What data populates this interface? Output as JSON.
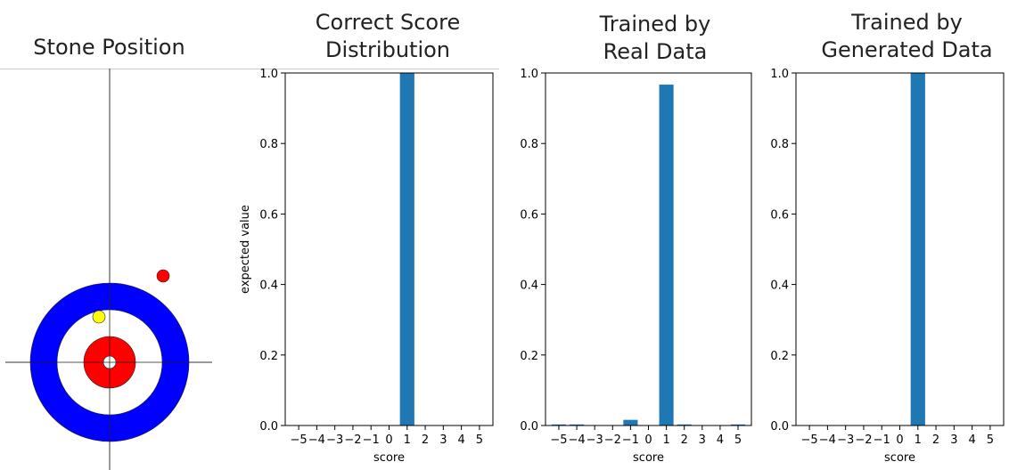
{
  "left_panel": {
    "title": "Stone Position",
    "colors": {
      "outer_ring": "#0000ff",
      "inner_ring": "#ff0000",
      "button": "#ffffff",
      "stone_red": "#ff0000",
      "stone_yellow": "#ffff00"
    }
  },
  "chart_data": [
    {
      "type": "bar",
      "title": "Correct Score\nDistribution",
      "xlabel": "score",
      "ylabel": "expected value",
      "categories": [
        "−5",
        "−4",
        "−3",
        "−2",
        "−1",
        "0",
        "1",
        "2",
        "3",
        "4",
        "5"
      ],
      "values": [
        0,
        0,
        0,
        0,
        0,
        0,
        1.0,
        0,
        0,
        0,
        0
      ],
      "ylim": [
        0,
        1.0
      ],
      "yticks": [
        "0.0",
        "0.2",
        "0.4",
        "0.6",
        "0.8",
        "1.0"
      ],
      "color": "#1f77b4"
    },
    {
      "type": "bar",
      "title": "Trained by\nReal Data",
      "xlabel": "score",
      "ylabel": "",
      "categories": [
        "−5",
        "−4",
        "−3",
        "−2",
        "−1",
        "0",
        "1",
        "2",
        "3",
        "4",
        "5"
      ],
      "values": [
        0.003,
        0.003,
        0,
        0,
        0.016,
        0,
        0.967,
        0.003,
        0,
        0,
        0.003
      ],
      "ylim": [
        0,
        1.0
      ],
      "yticks": [
        "0.0",
        "0.2",
        "0.4",
        "0.6",
        "0.8",
        "1.0"
      ],
      "color": "#1f77b4"
    },
    {
      "type": "bar",
      "title": "Trained by\nGenerated Data",
      "xlabel": "score",
      "ylabel": "",
      "categories": [
        "−5",
        "−4",
        "−3",
        "−2",
        "−1",
        "0",
        "1",
        "2",
        "3",
        "4",
        "5"
      ],
      "values": [
        0,
        0,
        0,
        0,
        0,
        0,
        1.0,
        0,
        0,
        0,
        0
      ],
      "ylim": [
        0,
        1.0
      ],
      "yticks": [
        "0.0",
        "0.2",
        "0.4",
        "0.6",
        "0.8",
        "1.0"
      ],
      "color": "#1f77b4"
    }
  ]
}
